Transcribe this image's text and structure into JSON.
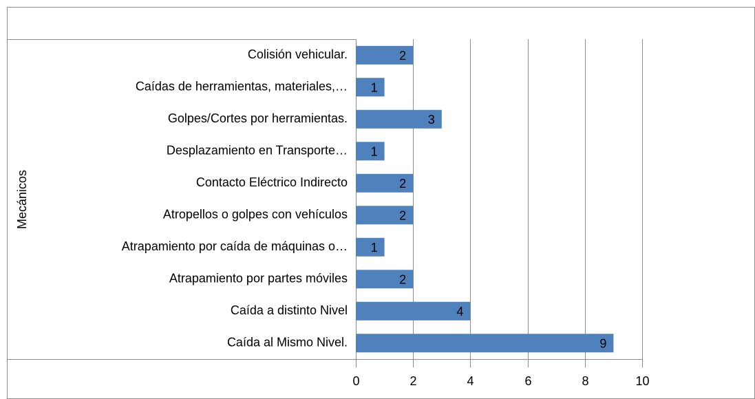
{
  "chart_data": {
    "type": "barh",
    "ylabel": "Mecánicos",
    "categories": [
      "Colisión vehicular.",
      "Caídas de herramientas, materiales,…",
      "Golpes/Cortes  por herramientas.",
      "Desplazamiento en Transporte…",
      "Contacto Eléctrico Indirecto",
      "Atropellos o golpes con vehículos",
      "Atrapamiento por caída de máquinas o…",
      "Atrapamiento por partes móviles",
      "Caída a distinto Nivel",
      "Caída al Mismo Nivel."
    ],
    "values": [
      2,
      1,
      3,
      1,
      2,
      2,
      1,
      2,
      4,
      9
    ],
    "color": "#4f81bd",
    "xlim": [
      0,
      10
    ],
    "xticks": [
      0,
      2,
      4,
      6,
      8,
      10
    ],
    "grid": true
  }
}
